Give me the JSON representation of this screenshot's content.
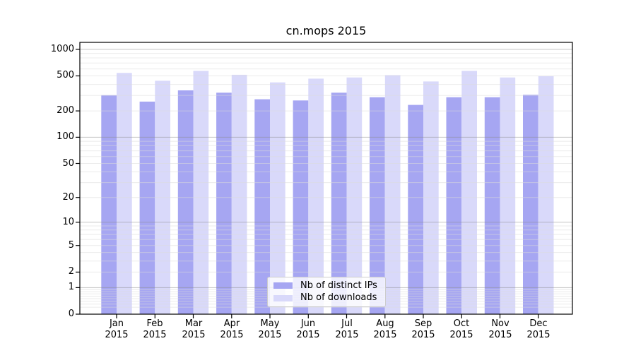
{
  "chart_data": {
    "type": "bar",
    "title": "cn.mops 2015",
    "y_scale": "log1p",
    "grid": true,
    "background": "#ffffff",
    "axis_color": "#000000",
    "categories": [
      "Jan",
      "Feb",
      "Mar",
      "Apr",
      "May",
      "Jun",
      "Jul",
      "Aug",
      "Sep",
      "Oct",
      "Nov",
      "Dec"
    ],
    "x_tick_year": "2015",
    "series": [
      {
        "name": "Nb of distinct IPs",
        "key": "distinct-ips",
        "color": "#a6a6f2",
        "values": [
          302,
          255,
          342,
          322,
          271,
          263,
          322,
          286,
          234,
          286,
          286,
          305
        ]
      },
      {
        "name": "Nb of downloads",
        "key": "downloads",
        "color": "#d9d9fa",
        "values": [
          540,
          440,
          570,
          515,
          422,
          465,
          480,
          510,
          432,
          570,
          480,
          495
        ]
      }
    ],
    "y_ticks": [
      1000,
      500,
      200,
      100,
      50,
      20,
      10,
      5,
      2,
      1,
      0
    ],
    "ylim": [
      0,
      1200
    ],
    "major_gridlines": [
      1,
      10,
      100,
      1000
    ],
    "minor_grid_decades": [
      0.1,
      1,
      10,
      100
    ],
    "minor_grid_subs": [
      2,
      3,
      4,
      5,
      6,
      7,
      8,
      9
    ],
    "legend_position": "lower-center-inside"
  }
}
